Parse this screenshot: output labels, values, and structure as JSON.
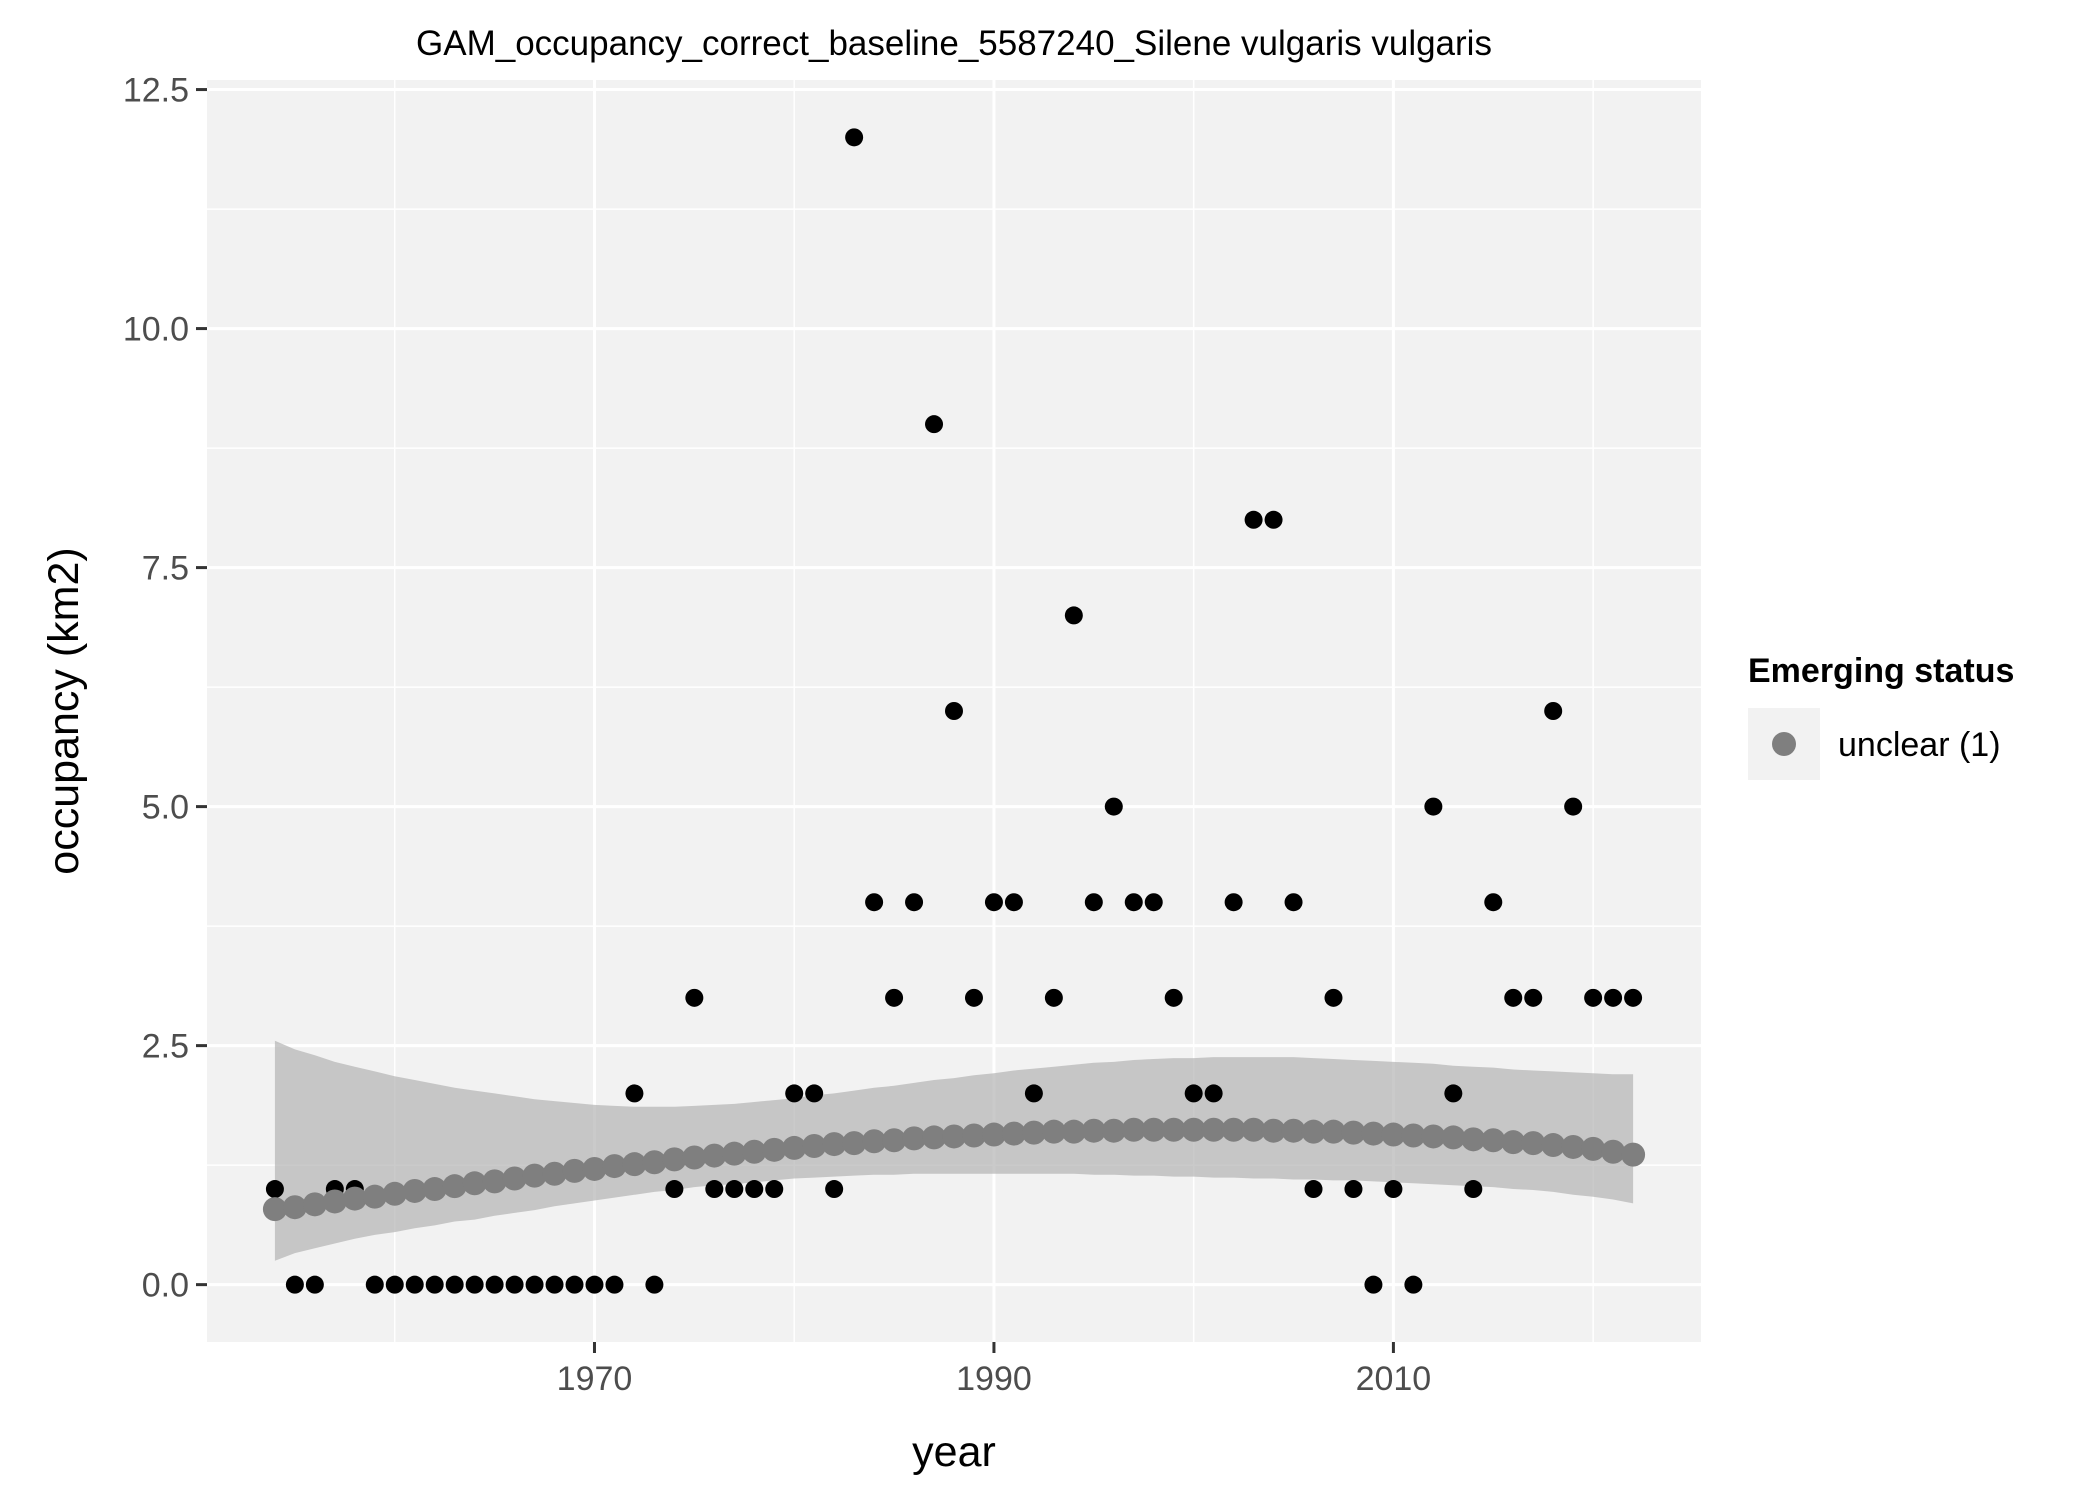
{
  "chart_data": {
    "type": "scatter",
    "title": "GAM_occupancy_correct_baseline_5587240_Silene vulgaris vulgaris",
    "xlabel": "year",
    "ylabel": "occupancy (km2)",
    "xlim": [
      1950.6,
      2025.4
    ],
    "ylim": [
      -0.6,
      12.6
    ],
    "x_ticks": [
      1970,
      1990,
      2010
    ],
    "y_ticks": [
      0,
      2.5,
      5,
      7.5,
      10,
      12.5
    ],
    "y_tick_labels": [
      "0.0",
      "2.5",
      "5.0",
      "7.5",
      "10.0",
      "12.5"
    ],
    "grid": true,
    "legend": {
      "title": "Emerging status",
      "position": "right",
      "entries": [
        {
          "label": "unclear (1)",
          "color": "#7f7f7f"
        }
      ]
    },
    "observed": {
      "color": "#000000",
      "x": [
        1954,
        1955,
        1956,
        1957,
        1958,
        1959,
        1960,
        1961,
        1962,
        1963,
        1964,
        1965,
        1966,
        1967,
        1968,
        1969,
        1970,
        1971,
        1972,
        1973,
        1974,
        1975,
        1976,
        1977,
        1978,
        1979,
        1980,
        1981,
        1982,
        1983,
        1984,
        1985,
        1986,
        1987,
        1988,
        1989,
        1990,
        1991,
        1992,
        1993,
        1994,
        1995,
        1996,
        1997,
        1998,
        1999,
        2000,
        2001,
        2002,
        2003,
        2004,
        2005,
        2006,
        2007,
        2008,
        2009,
        2010,
        2011,
        2012,
        2013,
        2014,
        2015,
        2016,
        2017,
        2018,
        2019,
        2020,
        2021,
        2022
      ],
      "y": [
        1,
        0,
        0,
        1,
        1,
        0,
        0,
        0,
        0,
        0,
        0,
        0,
        0,
        0,
        0,
        0,
        0,
        0,
        2,
        0,
        1,
        3,
        1,
        1,
        1,
        1,
        2,
        2,
        1,
        12,
        4,
        3,
        4,
        9,
        6,
        3,
        4,
        4,
        2,
        3,
        7,
        4,
        5,
        4,
        4,
        3,
        2,
        2,
        4,
        8,
        8,
        4,
        1,
        3,
        1,
        0,
        1,
        0,
        5,
        2,
        1,
        4,
        3,
        3,
        6,
        5,
        3,
        3,
        3
      ]
    },
    "fitted": {
      "name": "unclear (1)",
      "color": "#7f7f7f",
      "x": [
        1954,
        1955,
        1956,
        1957,
        1958,
        1959,
        1960,
        1961,
        1962,
        1963,
        1964,
        1965,
        1966,
        1967,
        1968,
        1969,
        1970,
        1971,
        1972,
        1973,
        1974,
        1975,
        1976,
        1977,
        1978,
        1979,
        1980,
        1981,
        1982,
        1983,
        1984,
        1985,
        1986,
        1987,
        1988,
        1989,
        1990,
        1991,
        1992,
        1993,
        1994,
        1995,
        1996,
        1997,
        1998,
        1999,
        2000,
        2001,
        2002,
        2003,
        2004,
        2005,
        2006,
        2007,
        2008,
        2009,
        2010,
        2011,
        2012,
        2013,
        2014,
        2015,
        2016,
        2017,
        2018,
        2019,
        2020,
        2021,
        2022
      ],
      "y": [
        0.79,
        0.81,
        0.84,
        0.87,
        0.9,
        0.92,
        0.95,
        0.98,
        1.0,
        1.03,
        1.06,
        1.08,
        1.11,
        1.14,
        1.16,
        1.19,
        1.21,
        1.24,
        1.26,
        1.28,
        1.31,
        1.33,
        1.35,
        1.37,
        1.39,
        1.41,
        1.43,
        1.45,
        1.47,
        1.48,
        1.5,
        1.51,
        1.53,
        1.54,
        1.55,
        1.56,
        1.57,
        1.58,
        1.59,
        1.6,
        1.6,
        1.61,
        1.61,
        1.62,
        1.62,
        1.62,
        1.62,
        1.62,
        1.62,
        1.62,
        1.61,
        1.61,
        1.6,
        1.6,
        1.59,
        1.58,
        1.57,
        1.56,
        1.55,
        1.54,
        1.52,
        1.51,
        1.49,
        1.48,
        1.46,
        1.44,
        1.42,
        1.39,
        1.36
      ],
      "ci_lower": [
        0.25,
        0.33,
        0.38,
        0.43,
        0.48,
        0.52,
        0.55,
        0.59,
        0.62,
        0.66,
        0.68,
        0.72,
        0.75,
        0.78,
        0.82,
        0.85,
        0.88,
        0.91,
        0.94,
        0.97,
        0.99,
        1.02,
        1.04,
        1.05,
        1.07,
        1.09,
        1.11,
        1.12,
        1.13,
        1.14,
        1.15,
        1.15,
        1.16,
        1.16,
        1.16,
        1.16,
        1.16,
        1.16,
        1.16,
        1.16,
        1.16,
        1.15,
        1.15,
        1.14,
        1.14,
        1.13,
        1.13,
        1.12,
        1.12,
        1.11,
        1.11,
        1.1,
        1.1,
        1.09,
        1.09,
        1.08,
        1.07,
        1.06,
        1.05,
        1.04,
        1.03,
        1.02,
        1.0,
        0.99,
        0.97,
        0.94,
        0.92,
        0.89,
        0.85
      ],
      "ci_upper": [
        2.55,
        2.46,
        2.4,
        2.33,
        2.28,
        2.23,
        2.18,
        2.14,
        2.1,
        2.06,
        2.03,
        2.0,
        1.97,
        1.94,
        1.92,
        1.9,
        1.88,
        1.87,
        1.86,
        1.86,
        1.86,
        1.87,
        1.88,
        1.89,
        1.91,
        1.93,
        1.95,
        1.98,
        2.0,
        2.03,
        2.06,
        2.08,
        2.11,
        2.14,
        2.16,
        2.19,
        2.21,
        2.24,
        2.26,
        2.28,
        2.3,
        2.32,
        2.33,
        2.35,
        2.36,
        2.37,
        2.37,
        2.38,
        2.38,
        2.38,
        2.38,
        2.38,
        2.37,
        2.36,
        2.35,
        2.34,
        2.33,
        2.32,
        2.31,
        2.29,
        2.28,
        2.27,
        2.25,
        2.24,
        2.23,
        2.22,
        2.21,
        2.2,
        2.2
      ]
    }
  }
}
